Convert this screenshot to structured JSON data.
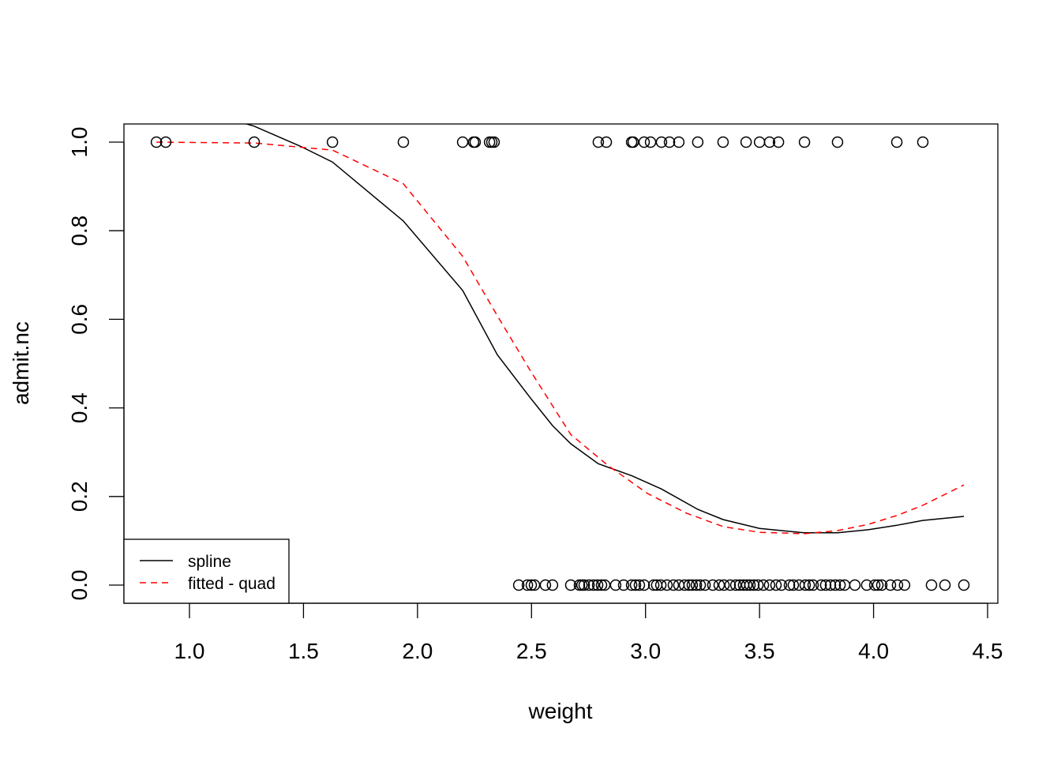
{
  "chart_data": {
    "type": "scatter",
    "title": "",
    "xlabel": "weight",
    "ylabel": "admit.nc",
    "xlim": [
      0.71,
      4.54
    ],
    "ylim": [
      -0.04,
      1.04
    ],
    "xticks": [
      "1.0",
      "1.5",
      "2.0",
      "2.5",
      "3.0",
      "3.5",
      "4.0",
      "4.5"
    ],
    "xtick_values": [
      1.0,
      1.5,
      2.0,
      2.5,
      3.0,
      3.5,
      4.0,
      4.5
    ],
    "yticks": [
      "0.0",
      "0.2",
      "0.4",
      "0.6",
      "0.8",
      "1.0"
    ],
    "ytick_values": [
      0.0,
      0.2,
      0.4,
      0.6,
      0.8,
      1.0
    ],
    "grid": false,
    "points_admitted": {
      "y": 1,
      "x": [
        0.855,
        0.896,
        1.284,
        1.627,
        1.938,
        2.198,
        2.246,
        2.253,
        2.316,
        2.326,
        2.336,
        2.793,
        2.828,
        2.939,
        2.946,
        2.994,
        3.022,
        3.07,
        3.105,
        3.146,
        3.229,
        3.34,
        3.441,
        3.5,
        3.544,
        3.583,
        3.697,
        3.842,
        4.102,
        4.216
      ]
    },
    "points_not_admitted": {
      "y": 0,
      "x": [
        2.444,
        2.482,
        2.499,
        2.513,
        2.561,
        2.592,
        2.672,
        2.71,
        2.721,
        2.731,
        2.752,
        2.772,
        2.79,
        2.807,
        2.821,
        2.869,
        2.904,
        2.939,
        2.956,
        2.973,
        2.994,
        3.036,
        3.049,
        3.067,
        3.094,
        3.122,
        3.146,
        3.171,
        3.191,
        3.205,
        3.223,
        3.24,
        3.261,
        3.295,
        3.323,
        3.344,
        3.371,
        3.396,
        3.413,
        3.43,
        3.444,
        3.458,
        3.475,
        3.493,
        3.517,
        3.544,
        3.572,
        3.596,
        3.631,
        3.648,
        3.673,
        3.7,
        3.718,
        3.735,
        3.77,
        3.79,
        3.811,
        3.832,
        3.853,
        3.873,
        3.918,
        3.97,
        4.005,
        4.019,
        4.036,
        4.074,
        4.105,
        4.136,
        4.254,
        4.313,
        4.396
      ]
    },
    "series": [
      {
        "name": "spline",
        "color": "#000000",
        "dash": "solid",
        "x": [
          0.855,
          1.284,
          1.485,
          1.627,
          1.938,
          2.198,
          2.35,
          2.496,
          2.592,
          2.672,
          2.793,
          2.939,
          3.07,
          3.229,
          3.34,
          3.5,
          3.697,
          3.842,
          3.977,
          4.102,
          4.216,
          4.396
        ],
        "y": [
          1.1,
          1.036,
          0.991,
          0.955,
          0.822,
          0.665,
          0.52,
          0.422,
          0.36,
          0.319,
          0.274,
          0.247,
          0.217,
          0.171,
          0.148,
          0.128,
          0.118,
          0.118,
          0.125,
          0.135,
          0.146,
          0.155
        ]
      },
      {
        "name": "fitted - quad",
        "color": "#ff0000",
        "dash": "dashed",
        "x": [
          0.855,
          1.284,
          1.627,
          1.938,
          2.198,
          2.35,
          2.496,
          2.672,
          2.835,
          3.008,
          3.181,
          3.34,
          3.5,
          3.697,
          3.842,
          3.977,
          4.102,
          4.216,
          4.396
        ],
        "y": [
          1.0,
          0.998,
          0.982,
          0.906,
          0.742,
          0.608,
          0.483,
          0.34,
          0.27,
          0.207,
          0.162,
          0.132,
          0.119,
          0.116,
          0.123,
          0.137,
          0.157,
          0.18,
          0.226
        ]
      }
    ],
    "legend": {
      "placement": "bottom-left",
      "entries": [
        "spline",
        "fitted - quad"
      ]
    }
  }
}
